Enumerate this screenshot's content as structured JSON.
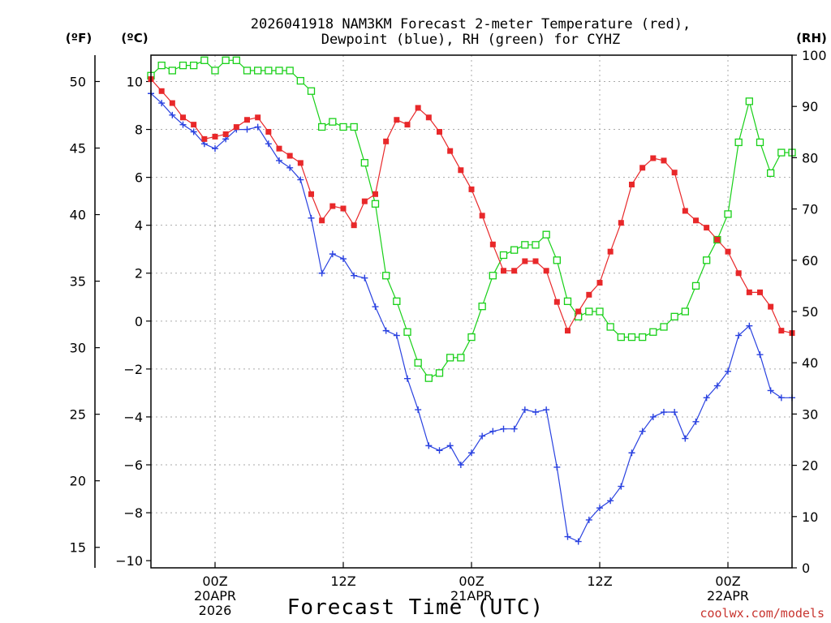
{
  "chart_data": {
    "type": "line",
    "title_line1": "2026041918 NAM3KM Forecast 2-meter Temperature (red),",
    "title_line2": "Dewpoint (blue), RH (green) for CYHZ",
    "xlabel": "Forecast Time (UTC)",
    "credit": "coolwx.com/models",
    "units": {
      "fahrenheit": "(ºF)",
      "celsius": "(ºC)",
      "rh": "(RH)"
    },
    "x_range_hours": [
      -6,
      54
    ],
    "x_ticks": [
      {
        "hour": 0,
        "lines": [
          "00Z",
          "20APR",
          "2026"
        ]
      },
      {
        "hour": 12,
        "lines": [
          "12Z"
        ]
      },
      {
        "hour": 24,
        "lines": [
          "00Z",
          "21APR"
        ]
      },
      {
        "hour": 36,
        "lines": [
          "12Z"
        ]
      },
      {
        "hour": 48,
        "lines": [
          "00Z",
          "22APR"
        ]
      }
    ],
    "celsius_axis": {
      "range": [
        -10.3,
        11.1
      ],
      "ticks": [
        -10,
        -8,
        -6,
        -4,
        -2,
        0,
        2,
        4,
        6,
        8,
        10
      ],
      "tick_labels": [
        "−10",
        "−8",
        "−6",
        "−4",
        "−2",
        "0",
        "2",
        "4",
        "6",
        "8",
        "10"
      ]
    },
    "fahrenheit_axis": {
      "ticks": [
        15,
        20,
        25,
        30,
        35,
        40,
        45,
        50
      ]
    },
    "rh_axis": {
      "range": [
        0,
        100
      ],
      "ticks": [
        0,
        10,
        20,
        30,
        40,
        50,
        60,
        70,
        80,
        90,
        100
      ]
    },
    "colors": {
      "temperature": "#e8282a",
      "dewpoint": "#2a42e0",
      "rh": "#18d018",
      "grid": "#aaaaaa",
      "axis": "#000000"
    },
    "series": [
      {
        "name": "Temperature",
        "axis": "celsius",
        "marker": "filled-square",
        "values": [
          10.1,
          9.6,
          9.1,
          8.5,
          8.2,
          7.6,
          7.7,
          7.8,
          8.1,
          8.4,
          8.5,
          7.9,
          7.2,
          6.9,
          6.6,
          5.3,
          4.2,
          4.8,
          4.7,
          4.0,
          5.0,
          5.3,
          7.5,
          8.4,
          8.2,
          8.9,
          8.5,
          7.9,
          7.1,
          6.3,
          5.5,
          4.4,
          3.2,
          2.1,
          2.1,
          2.5,
          2.5,
          2.1,
          0.8,
          -0.4,
          0.4,
          1.1,
          1.6,
          2.9,
          4.1,
          5.7,
          6.4,
          6.8,
          6.7,
          6.2,
          4.6,
          4.2,
          3.9,
          3.4,
          2.9,
          2.0,
          1.2,
          1.2,
          0.6,
          -0.4,
          -0.5
        ]
      },
      {
        "name": "Dewpoint",
        "axis": "celsius",
        "marker": "plus",
        "values": [
          9.5,
          9.1,
          8.6,
          8.2,
          7.9,
          7.4,
          7.2,
          7.6,
          8.0,
          8.0,
          8.1,
          7.4,
          6.7,
          6.4,
          5.9,
          4.3,
          2.0,
          2.8,
          2.6,
          1.9,
          1.8,
          0.6,
          -0.4,
          -0.6,
          -2.4,
          -3.7,
          -5.2,
          -5.4,
          -5.2,
          -6.0,
          -5.5,
          -4.8,
          -4.6,
          -4.5,
          -4.5,
          -3.7,
          -3.8,
          -3.7,
          -6.1,
          -9.0,
          -9.2,
          -8.3,
          -7.8,
          -7.5,
          -6.9,
          -5.5,
          -4.6,
          -4.0,
          -3.8,
          -3.8,
          -4.9,
          -4.2,
          -3.2,
          -2.7,
          -2.1,
          -0.6,
          -0.2,
          -1.4,
          -2.9,
          -3.2,
          -3.2
        ]
      },
      {
        "name": "RH",
        "axis": "rh",
        "marker": "open-square",
        "values": [
          96,
          98,
          97,
          98,
          98,
          99,
          97,
          99,
          99,
          97,
          97,
          97,
          97,
          97,
          95,
          93,
          86,
          87,
          86,
          86,
          79,
          71,
          57,
          52,
          46,
          40,
          37,
          38,
          41,
          41,
          45,
          51,
          57,
          61,
          62,
          63,
          63,
          65,
          60,
          52,
          49,
          50,
          50,
          47,
          45,
          45,
          45,
          46,
          47,
          49,
          50,
          55,
          60,
          64,
          69,
          83,
          91,
          83,
          77,
          81,
          81
        ]
      }
    ]
  }
}
